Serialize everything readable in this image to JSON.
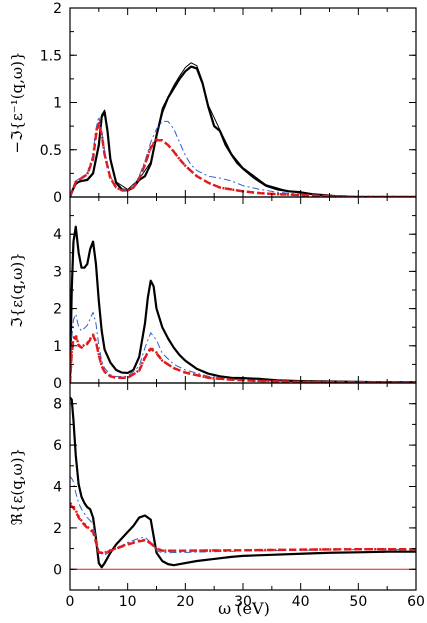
{
  "chart_data": {
    "type": "line",
    "xlabel": "ω (eV)",
    "xlim": [
      0,
      60
    ],
    "xticks": [
      "0",
      "10",
      "20",
      "30",
      "40",
      "50",
      "60"
    ],
    "panels": [
      {
        "ylabel": "−ℑ{ε⁻¹(q,ω)}",
        "ylim": [
          0,
          2
        ],
        "yticks": [
          "0",
          "0.5",
          "1",
          "1.5",
          "2"
        ],
        "series": [
          {
            "style": "solid-thick",
            "color": "#000000",
            "x": [
              0,
              0.5,
              1,
              1.5,
              2,
              3,
              4,
              5,
              5.5,
              6,
              6.5,
              7,
              8,
              9,
              10,
              11,
              12,
              13,
              14,
              15,
              16,
              17,
              18,
              19,
              20,
              21,
              22,
              23,
              24,
              25,
              26,
              27,
              28,
              29,
              30,
              32,
              34,
              36,
              38,
              40,
              42,
              44,
              46,
              50,
              55,
              60
            ],
            "y": [
              0,
              0.08,
              0.14,
              0.16,
              0.17,
              0.18,
              0.25,
              0.55,
              0.85,
              0.9,
              0.7,
              0.4,
              0.15,
              0.08,
              0.07,
              0.1,
              0.18,
              0.22,
              0.35,
              0.65,
              0.9,
              1.05,
              1.15,
              1.25,
              1.33,
              1.38,
              1.36,
              1.2,
              0.95,
              0.75,
              0.7,
              0.55,
              0.45,
              0.36,
              0.3,
              0.2,
              0.12,
              0.08,
              0.06,
              0.05,
              0.03,
              0.02,
              0.01,
              0,
              0,
              0
            ]
          },
          {
            "style": "solid-thin",
            "color": "#000000",
            "x": [
              0,
              1,
              2,
              3,
              4,
              5,
              5.5,
              6,
              7,
              8,
              10,
              12,
              14,
              16,
              18,
              19,
              20,
              21,
              22,
              23,
              24,
              26,
              28,
              30,
              34,
              38,
              42,
              46,
              50,
              60
            ],
            "y": [
              0,
              0.15,
              0.17,
              0.19,
              0.26,
              0.57,
              0.87,
              0.92,
              0.42,
              0.16,
              0.08,
              0.19,
              0.37,
              0.94,
              1.18,
              1.28,
              1.37,
              1.42,
              1.39,
              1.22,
              0.97,
              0.71,
              0.46,
              0.31,
              0.13,
              0.06,
              0.03,
              0.01,
              0,
              0
            ]
          },
          {
            "style": "dashed-thick",
            "color": "#e31a1c",
            "x": [
              0,
              1,
              2,
              3,
              4,
              4.5,
              5,
              5.5,
              6,
              7,
              8,
              9,
              10,
              11,
              12,
              13,
              14,
              15,
              16,
              17,
              18,
              19,
              20,
              22,
              24,
              26,
              28,
              30,
              33,
              36,
              40,
              45,
              50,
              60
            ],
            "y": [
              0,
              0.16,
              0.2,
              0.24,
              0.4,
              0.65,
              0.78,
              0.66,
              0.45,
              0.2,
              0.1,
              0.07,
              0.07,
              0.1,
              0.2,
              0.34,
              0.52,
              0.6,
              0.6,
              0.55,
              0.48,
              0.4,
              0.33,
              0.22,
              0.15,
              0.1,
              0.08,
              0.06,
              0.04,
              0.03,
              0.02,
              0.01,
              0,
              0
            ]
          },
          {
            "style": "dashdot-thin",
            "color": "#3060d0",
            "x": [
              0,
              1,
              2,
              3,
              4,
              4.5,
              5,
              5.5,
              6,
              7,
              8,
              9,
              10,
              11,
              12,
              13,
              14,
              15,
              16,
              17,
              18,
              19,
              20,
              21,
              22,
              24,
              26,
              28,
              30,
              33,
              36,
              40,
              45,
              50,
              60
            ],
            "y": [
              0,
              0.17,
              0.21,
              0.25,
              0.45,
              0.72,
              0.85,
              0.7,
              0.48,
              0.22,
              0.1,
              0.07,
              0.07,
              0.11,
              0.22,
              0.38,
              0.58,
              0.72,
              0.8,
              0.8,
              0.72,
              0.58,
              0.44,
              0.34,
              0.28,
              0.22,
              0.2,
              0.17,
              0.12,
              0.08,
              0.05,
              0.03,
              0.01,
              0,
              0
            ]
          },
          {
            "style": "dotted-thick",
            "color": "#e31a1c",
            "x": [
              0,
              1,
              2,
              3,
              4,
              4.5,
              5,
              5.5,
              6,
              7,
              8,
              9,
              10,
              11,
              12,
              13,
              14,
              15,
              16,
              17,
              18,
              19,
              20,
              22,
              24,
              26,
              28,
              30,
              33,
              36,
              40,
              45,
              50,
              60
            ],
            "y": [
              0,
              0.16,
              0.2,
              0.24,
              0.42,
              0.68,
              0.8,
              0.67,
              0.45,
              0.2,
              0.1,
              0.07,
              0.07,
              0.1,
              0.2,
              0.35,
              0.53,
              0.61,
              0.6,
              0.55,
              0.48,
              0.4,
              0.33,
              0.22,
              0.15,
              0.1,
              0.08,
              0.06,
              0.04,
              0.03,
              0.02,
              0.01,
              0,
              0
            ]
          }
        ]
      },
      {
        "ylabel": "ℑ{ε(q,ω)}",
        "ylim": [
          0,
          5
        ],
        "yticks": [
          "0",
          "1",
          "2",
          "3",
          "4"
        ],
        "series": [
          {
            "style": "solid-thick",
            "color": "#000000",
            "x": [
              0,
              0.3,
              0.6,
              1,
              1.5,
              2,
              2.5,
              3,
              3.5,
              4,
              4.5,
              5,
              5.5,
              6,
              7,
              8,
              9,
              10,
              11,
              12,
              13,
              13.5,
              14,
              14.5,
              15,
              16,
              17,
              18,
              19,
              20,
              22,
              24,
              26,
              28,
              30,
              33,
              36,
              40,
              45,
              50,
              55,
              60
            ],
            "y": [
              0,
              2.5,
              3.8,
              4.2,
              3.5,
              3.1,
              3.1,
              3.2,
              3.6,
              3.8,
              3.2,
              2.2,
              1.4,
              0.9,
              0.55,
              0.35,
              0.28,
              0.27,
              0.35,
              0.7,
              1.6,
              2.3,
              2.75,
              2.6,
              2.0,
              1.5,
              1.2,
              0.95,
              0.75,
              0.6,
              0.38,
              0.25,
              0.18,
              0.14,
              0.13,
              0.11,
              0.07,
              0.05,
              0.04,
              0.03,
              0.02,
              0.02
            ]
          },
          {
            "style": "dashdot-thin",
            "color": "#3060d0",
            "x": [
              0,
              0.3,
              0.6,
              1,
              1.5,
              2,
              3,
              4,
              4.5,
              5,
              5.5,
              6,
              7,
              8,
              10,
              12,
              13,
              14,
              15,
              16,
              18,
              20,
              24,
              28,
              32,
              40,
              50,
              60
            ],
            "y": [
              0,
              1.2,
              1.7,
              1.85,
              1.5,
              1.4,
              1.55,
              1.9,
              1.6,
              1.0,
              0.6,
              0.4,
              0.22,
              0.17,
              0.18,
              0.45,
              0.95,
              1.35,
              1.15,
              0.8,
              0.5,
              0.35,
              0.18,
              0.1,
              0.07,
              0.04,
              0.02,
              0.01
            ]
          },
          {
            "style": "dashed-thick",
            "color": "#e31a1c",
            "x": [
              0,
              0.3,
              0.6,
              1,
              1.5,
              2,
              3,
              4,
              4.5,
              5,
              5.5,
              6,
              7,
              8,
              10,
              12,
              13,
              14,
              15,
              16,
              18,
              20,
              24,
              28,
              32,
              40,
              50,
              60
            ],
            "y": [
              0,
              0.8,
              1.15,
              1.25,
              1.0,
              0.95,
              1.05,
              1.28,
              1.1,
              0.75,
              0.45,
              0.3,
              0.18,
              0.14,
              0.14,
              0.33,
              0.68,
              0.92,
              0.8,
              0.6,
              0.4,
              0.28,
              0.14,
              0.09,
              0.06,
              0.03,
              0.02,
              0.01
            ]
          },
          {
            "style": "dotted-thick",
            "color": "#e31a1c",
            "x": [
              0,
              0.3,
              0.6,
              1,
              1.5,
              2,
              3,
              4,
              4.5,
              5,
              5.5,
              6,
              7,
              8,
              10,
              12,
              13,
              14,
              15,
              16,
              18,
              20,
              24,
              28,
              32,
              40,
              50,
              60
            ],
            "y": [
              0,
              0.85,
              1.2,
              1.3,
              1.02,
              0.97,
              1.08,
              1.3,
              1.12,
              0.76,
              0.46,
              0.3,
              0.18,
              0.14,
              0.14,
              0.34,
              0.7,
              0.95,
              0.82,
              0.6,
              0.4,
              0.28,
              0.14,
              0.09,
              0.06,
              0.03,
              0.02,
              0.01
            ]
          }
        ]
      },
      {
        "ylabel": "ℜ{ε(q,ω)}",
        "ylim": [
          -1,
          9
        ],
        "yticks": [
          "0",
          "2",
          "4",
          "6",
          "8"
        ],
        "series": [
          {
            "style": "thin-red",
            "color": "#e31a1c",
            "x": [
              0,
              60
            ],
            "y": [
              0,
              0
            ]
          },
          {
            "style": "solid-thick",
            "color": "#000000",
            "x": [
              0,
              0.3,
              0.6,
              1,
              1.5,
              2,
              2.5,
              3,
              3.5,
              4,
              4.5,
              5,
              5.5,
              6,
              7,
              8,
              9,
              10,
              11,
              12,
              13,
              14,
              14.5,
              15,
              16,
              17,
              18,
              20,
              22,
              25,
              28,
              30,
              35,
              40,
              45,
              50,
              55,
              60
            ],
            "y": [
              8.3,
              8.2,
              7.2,
              5.5,
              4.1,
              3.5,
              3.2,
              3.0,
              2.9,
              2.5,
              1.5,
              0.3,
              0.1,
              0.3,
              0.8,
              1.2,
              1.5,
              1.8,
              2.1,
              2.5,
              2.6,
              2.4,
              1.6,
              0.8,
              0.4,
              0.25,
              0.2,
              0.3,
              0.4,
              0.5,
              0.6,
              0.65,
              0.7,
              0.75,
              0.8,
              0.82,
              0.85,
              0.85
            ]
          },
          {
            "style": "dashdot-thin",
            "color": "#3060d0",
            "x": [
              0,
              0.5,
              1,
              1.5,
              2,
              3,
              4,
              4.5,
              5,
              6,
              7,
              8,
              10,
              12,
              13,
              14,
              15,
              16,
              20,
              30,
              40,
              50,
              60
            ],
            "y": [
              4.5,
              4.3,
              3.7,
              3.2,
              2.9,
              2.5,
              2.2,
              1.5,
              0.8,
              0.7,
              0.85,
              1.0,
              1.3,
              1.5,
              1.55,
              1.3,
              0.9,
              0.8,
              0.82,
              0.88,
              0.92,
              0.95,
              0.95
            ]
          },
          {
            "style": "dashed-thick",
            "color": "#e31a1c",
            "x": [
              0,
              0.5,
              1,
              1.5,
              2,
              3,
              4,
              4.5,
              5,
              6,
              7,
              8,
              10,
              12,
              13,
              14,
              15,
              16,
              20,
              30,
              40,
              50,
              60
            ],
            "y": [
              3.1,
              3.0,
              2.8,
              2.5,
              2.3,
              2.0,
              1.8,
              1.3,
              0.8,
              0.78,
              0.9,
              1.0,
              1.2,
              1.35,
              1.4,
              1.25,
              1.0,
              0.9,
              0.9,
              0.92,
              0.95,
              0.97,
              0.97
            ]
          },
          {
            "style": "dotted-thick",
            "color": "#e31a1c",
            "x": [
              0,
              0.5,
              1,
              1.5,
              2,
              3,
              4,
              4.5,
              5,
              6,
              7,
              8,
              10,
              12,
              13,
              14,
              15,
              16,
              20,
              30,
              40,
              50,
              60
            ],
            "y": [
              3.2,
              3.1,
              2.85,
              2.55,
              2.35,
              2.05,
              1.85,
              1.35,
              0.82,
              0.8,
              0.92,
              1.02,
              1.22,
              1.38,
              1.42,
              1.27,
              1.0,
              0.9,
              0.9,
              0.92,
              0.95,
              0.97,
              0.97
            ]
          }
        ]
      }
    ]
  }
}
